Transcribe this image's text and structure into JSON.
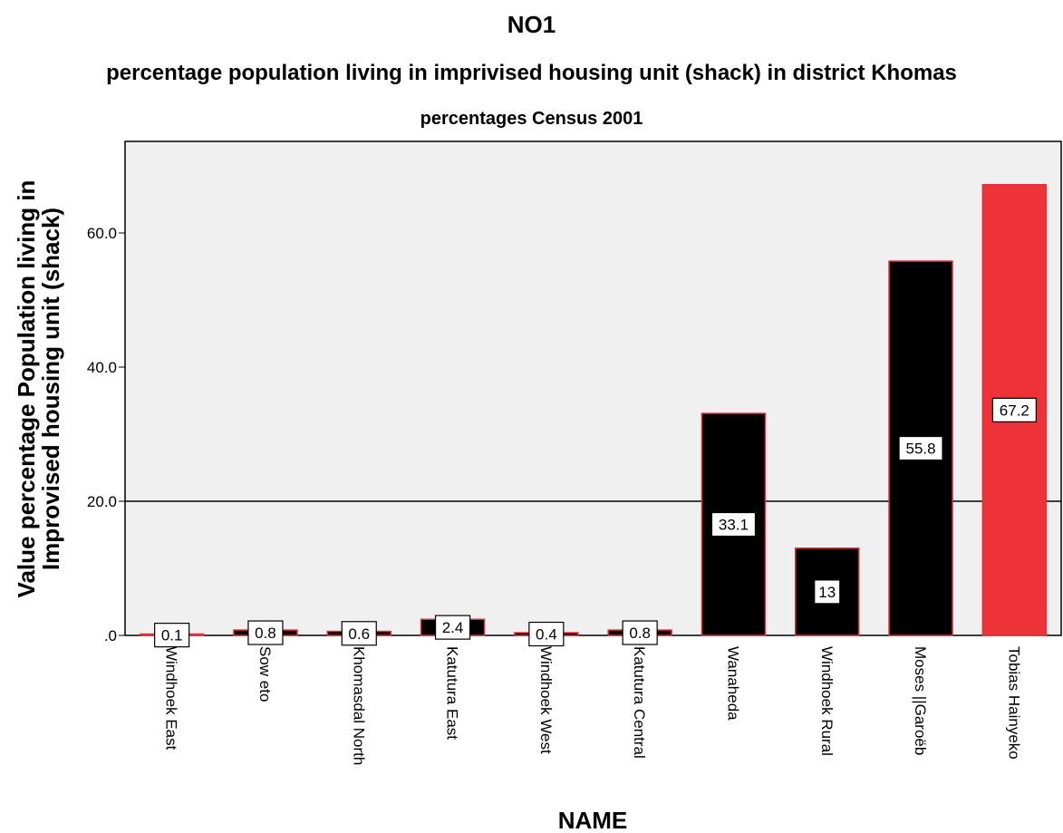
{
  "chart_data": {
    "type": "bar",
    "title": "NO1",
    "subtitle": "percentage population living in imprivised housing unit (shack) in district Khomas",
    "caption": "percentages Census 2001",
    "xlabel": "NAME",
    "ylabel_line1": "Value percentage Population living in",
    "ylabel_line2": "Improvised housing unit (shack)",
    "ylim": [
      0,
      75
    ],
    "yticks": [
      0,
      20,
      40,
      60
    ],
    "ytick_labels": [
      ".0",
      "20.0",
      "40.0",
      "60.0"
    ],
    "reference_line": 20,
    "grid": false,
    "categories": [
      "Windhoek East",
      "Sow eto",
      "Khomasdal North",
      "Katutura East",
      "Windhoek West",
      "Katutura Central",
      "Wanaheda",
      "Windhoek Rural",
      "Moses ||Garoëb",
      "Tobias Hainyeko"
    ],
    "values": [
      0.1,
      0.8,
      0.6,
      2.4,
      0.4,
      0.8,
      33.1,
      13,
      55.8,
      67.2
    ],
    "value_labels": [
      "0.1",
      "0.8",
      "0.6",
      "2.4",
      "0.4",
      "0.8",
      "33.1",
      "13",
      "55.8",
      "67.2"
    ],
    "bar_colors": [
      "#000000",
      "#000000",
      "#000000",
      "#000000",
      "#000000",
      "#000000",
      "#000000",
      "#000000",
      "#000000",
      "#ee3338"
    ],
    "bar_edge_color": "#e0303a",
    "plot_background": "#f0f0f0"
  }
}
